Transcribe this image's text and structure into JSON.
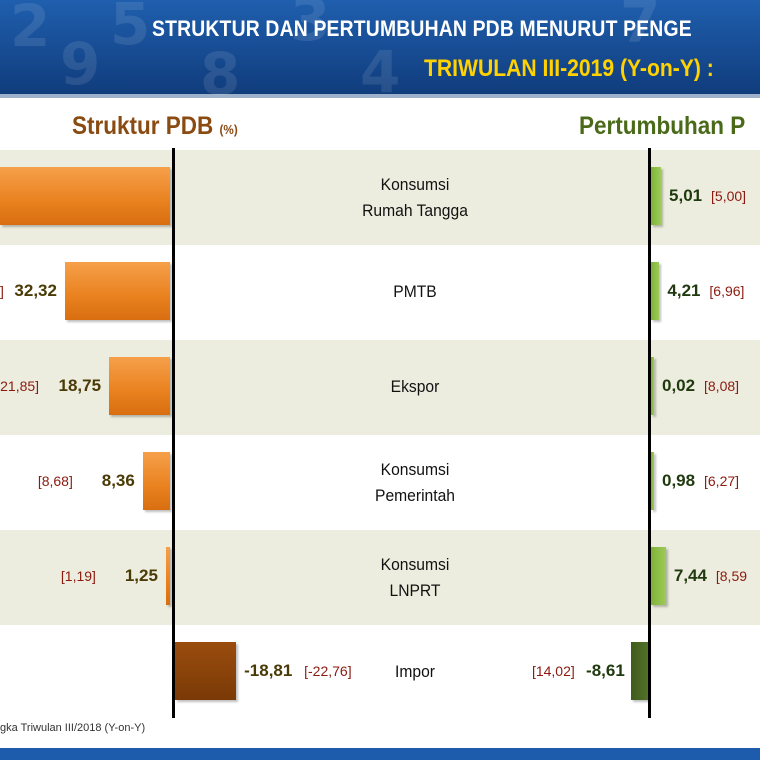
{
  "header": {
    "title": "STRUKTUR DAN PERTUMBUHAN PDB MENURUT PENGE",
    "subtitle": "TRIWULAN III-2019 (Y-on-Y) :"
  },
  "left_title": {
    "text": "Struktur PDB",
    "unit": "(%)"
  },
  "right_title": {
    "text": "Pertumbuhan P"
  },
  "footnote": "gka Triwulan III/2018 (Y-on-Y)",
  "colors": {
    "header": "#16498f",
    "subtitle": "#ffd200",
    "struktur_bar": "#e9811f",
    "struktur_neg": "#7a3906",
    "growth_bar": "#8fc04a",
    "growth_neg": "#3f5a1c",
    "prev_text": "#8b1a0f"
  },
  "chart_data": [
    {
      "type": "bar",
      "orientation": "horizontal",
      "title": "Struktur PDB (%)",
      "categories": [
        "Konsumsi Rumah Tangga",
        "PMTB",
        "Ekspor",
        "Konsumsi Pemerintah",
        "Konsumsi LNPRT",
        "Impor"
      ],
      "series": [
        {
          "values": [
            null,
            32.32,
            18.75,
            8.36,
            1.25,
            -18.81
          ]
        },
        {
          "values": [
            null,
            null,
            21.85,
            8.68,
            1.19,
            -22.76
          ]
        }
      ],
      "labels": [
        "",
        "32,32",
        "18,75",
        "8,36",
        "1,25",
        "-18,81"
      ],
      "prev_labels": [
        "",
        "",
        "[21,85]",
        "[8,68]",
        "[1,19]",
        "[-22,76]"
      ],
      "prev_partial": [
        "",
        "]",
        "",
        "",
        "",
        ""
      ]
    },
    {
      "type": "bar",
      "orientation": "horizontal",
      "title": "Pertumbuhan P",
      "categories": [
        "Konsumsi Rumah Tangga",
        "PMTB",
        "Ekspor",
        "Konsumsi Pemerintah",
        "Konsumsi LNPRT",
        "Impor"
      ],
      "series": [
        {
          "values": [
            5.01,
            4.21,
            0.02,
            0.98,
            7.44,
            -8.61
          ]
        },
        {
          "values": [
            5.0,
            6.96,
            8.08,
            6.27,
            8.59,
            14.02
          ]
        }
      ],
      "labels": [
        "5,01",
        "4,21",
        "0,02",
        "0,98",
        "7,44",
        "-8,61"
      ],
      "prev_labels": [
        "[5,00]",
        "[6,96]",
        "[8,08]",
        "[6,27]",
        "[8,59",
        "[14,02]"
      ]
    }
  ],
  "rows": [
    {
      "line1": "Konsumsi",
      "line2": "Rumah Tangga"
    },
    {
      "line1": "PMTB",
      "line2": ""
    },
    {
      "line1": "Ekspor",
      "line2": ""
    },
    {
      "line1": "Konsumsi",
      "line2": "Pemerintah"
    },
    {
      "line1": "Konsumsi",
      "line2": "LNPRT"
    },
    {
      "line1": "Impor",
      "line2": ""
    }
  ]
}
